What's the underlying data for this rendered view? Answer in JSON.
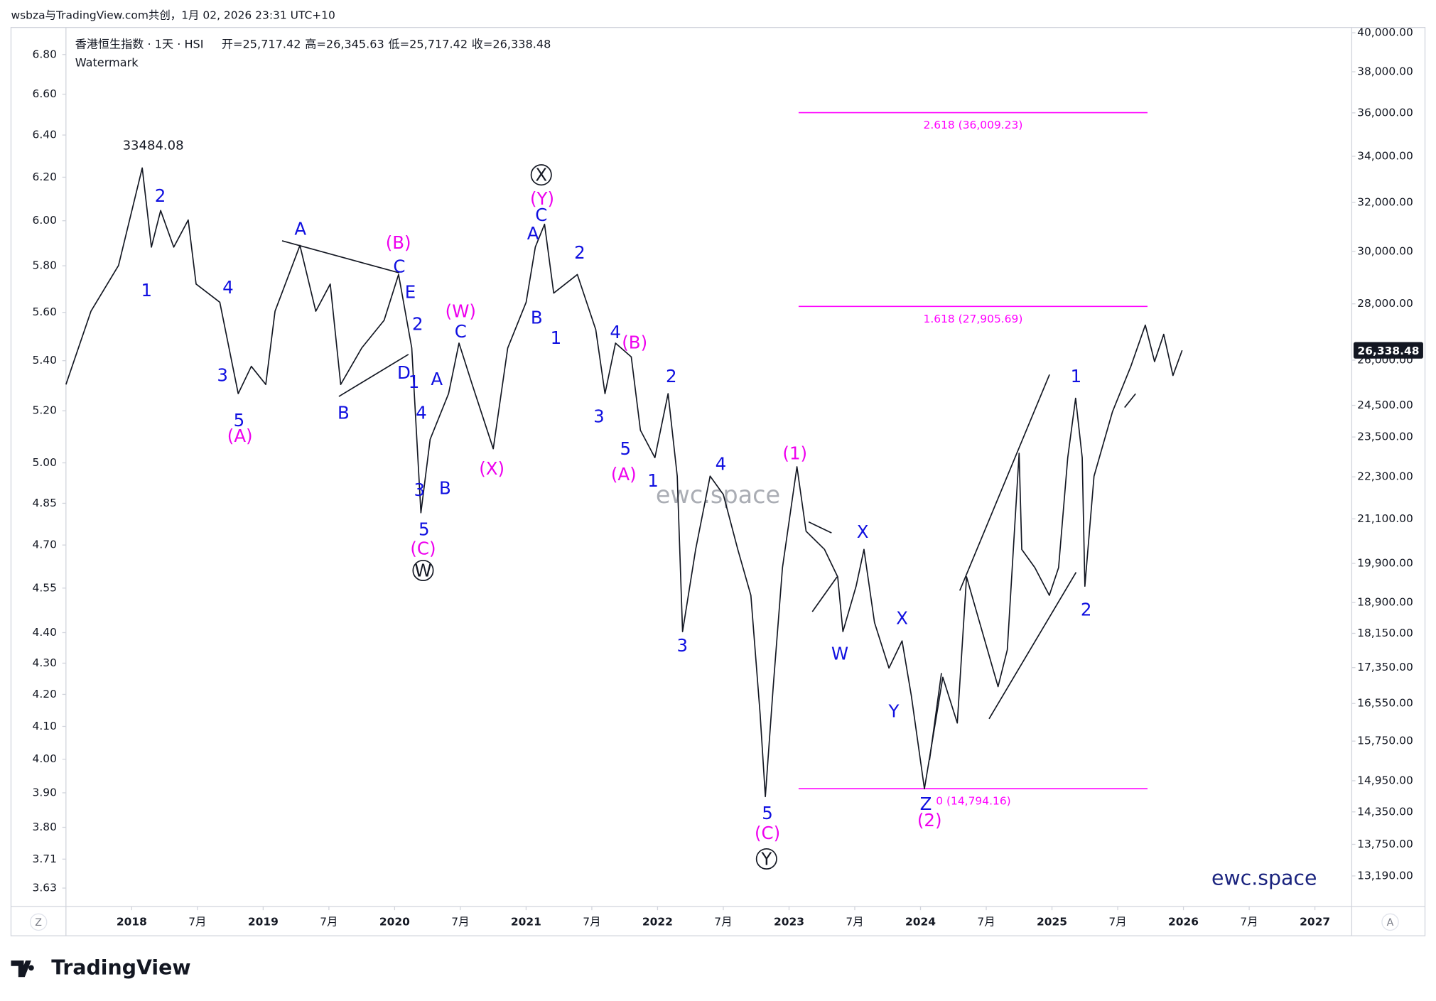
{
  "chart_data": {
    "type": "line",
    "attribution": "wsbza与TradingView.com共创，1月 02, 2026 23:31 UTC+10",
    "symbol": "香港恒生指数 · 1天 · HSI",
    "ohlc": [
      "开=25,717.42",
      "高=26,345.63",
      "低=25,717.42",
      "收=26,338.48"
    ],
    "watermark_label": "Watermark",
    "watermarks": [
      "ewc.space",
      "ewc.space"
    ],
    "brand": "TradingView",
    "buttons": [
      "Z",
      "A"
    ],
    "color": "#131722",
    "log_scale": true,
    "x": [
      2017.5,
      2017.69,
      2017.9,
      2018.08,
      2018.15,
      2018.22,
      2018.32,
      2018.43,
      2018.49,
      2018.67,
      2018.81,
      2018.91,
      2019.02,
      2019.09,
      2019.28,
      2019.4,
      2019.51,
      2019.59,
      2019.75,
      2019.92,
      2020.03,
      2020.13,
      2020.2,
      2020.27,
      2020.41,
      2020.49,
      2020.59,
      2020.75,
      2020.86,
      2021.0,
      2021.07,
      2021.14,
      2021.21,
      2021.39,
      2021.53,
      2021.6,
      2021.68,
      2021.8,
      2021.87,
      2021.98,
      2022.08,
      2022.15,
      2022.19,
      2022.29,
      2022.4,
      2022.5,
      2022.61,
      2022.71,
      2022.78,
      2022.82,
      2022.88,
      2022.95,
      2023.06,
      2023.13,
      2023.27,
      2023.37,
      2023.41,
      2023.51,
      2023.57,
      2023.65,
      2023.76,
      2023.86,
      2023.93,
      2024.03,
      2024.17,
      2024.28,
      2024.35,
      2024.45,
      2024.59,
      2024.66,
      2024.75,
      2024.77,
      2024.87,
      2024.98,
      2025.05,
      2025.12,
      2025.18,
      2025.23,
      2025.25,
      2025.32,
      2025.46,
      2025.6,
      2025.71,
      2025.78,
      2025.85,
      2025.92,
      2025.99
    ],
    "values": [
      25180,
      27730,
      29450,
      33484.08,
      30170,
      31660,
      30170,
      31270,
      28740,
      28060,
      24880,
      25790,
      25180,
      27730,
      30240,
      27730,
      28740,
      25180,
      26420,
      27400,
      29100,
      26420,
      21270,
      23430,
      24880,
      26590,
      25180,
      23140,
      26420,
      28060,
      30170,
      31090,
      28400,
      29100,
      27070,
      24880,
      26590,
      26110,
      23710,
      22870,
      24880,
      22320,
      18190,
      20270,
      22320,
      21790,
      20270,
      19080,
      16320,
      14640,
      16920,
      19790,
      22600,
      20760,
      20270,
      19550,
      18190,
      19310,
      20270,
      18410,
      17340,
      17970,
      16720,
      14794.16,
      17130,
      16130,
      19550,
      18410,
      16920,
      17760,
      23000,
      20270,
      19790,
      19080,
      19790,
      22870,
      24730,
      22870,
      19310,
      22320,
      24290,
      25790,
      27230,
      25950,
      26900,
      25480,
      26338.48
    ],
    "xlim": [
      2017.5,
      2027.28
    ],
    "xticks": [
      2018,
      {
        "value": 2018.5,
        "label": "7月"
      },
      2019,
      {
        "value": 2019.5,
        "label": "7月"
      },
      2020,
      {
        "value": 2020.5,
        "label": "7月"
      },
      2021,
      {
        "value": 2021.5,
        "label": "7月"
      },
      2022,
      {
        "value": 2022.5,
        "label": "7月"
      },
      2023,
      {
        "value": 2023.5,
        "label": "7月"
      },
      2024,
      {
        "value": 2024.5,
        "label": "7月"
      },
      2025,
      {
        "value": 2025.5,
        "label": "7月"
      },
      2026,
      {
        "value": 2026.5,
        "label": "7月"
      },
      2027
    ],
    "ylim": [
      12670,
      40280
    ],
    "yticks": [
      {
        "value": 40000,
        "label": "40,000.00"
      },
      {
        "value": 38000,
        "label": "38,000.00"
      },
      {
        "value": 36000,
        "label": "36,000.00"
      },
      {
        "value": 34000,
        "label": "34,000.00"
      },
      {
        "value": 32000,
        "label": "32,000.00"
      },
      {
        "value": 30000,
        "label": "30,000.00"
      },
      {
        "value": 28000,
        "label": "28,000.00"
      },
      {
        "value": 26000,
        "label": "26,000.00"
      },
      {
        "value": 24500,
        "label": "24,500.00"
      },
      {
        "value": 23500,
        "label": "23,500.00"
      },
      {
        "value": 22300,
        "label": "22,300.00"
      },
      {
        "value": 21100,
        "label": "21,100.00"
      },
      {
        "value": 19900,
        "label": "19,900.00"
      },
      {
        "value": 18900,
        "label": "18,900.00"
      },
      {
        "value": 18150,
        "label": "18,150.00"
      },
      {
        "value": 17350,
        "label": "17,350.00"
      },
      {
        "value": 16550,
        "label": "16,550.00"
      },
      {
        "value": 15750,
        "label": "15,750.00"
      },
      {
        "value": 14950,
        "label": "14,950.00"
      },
      {
        "value": 14350,
        "label": "14,350.00"
      },
      {
        "value": 13750,
        "label": "13,750.00"
      },
      {
        "value": 13190,
        "label": "13,190.00"
      }
    ],
    "y2lim": [
      3.58,
      6.94
    ],
    "y2ticks": [
      {
        "value": 6.8,
        "label": "6.80"
      },
      {
        "value": 6.6,
        "label": "6.60"
      },
      {
        "value": 6.4,
        "label": "6.40"
      },
      {
        "value": 6.2,
        "label": "6.20"
      },
      {
        "value": 6.0,
        "label": "6.00"
      },
      {
        "value": 5.8,
        "label": "5.80"
      },
      {
        "value": 5.6,
        "label": "5.60"
      },
      {
        "value": 5.4,
        "label": "5.40"
      },
      {
        "value": 5.2,
        "label": "5.20"
      },
      {
        "value": 5.0,
        "label": "5.00"
      },
      4.85,
      {
        "value": 4.7,
        "label": "4.70"
      },
      4.55,
      {
        "value": 4.4,
        "label": "4.40"
      },
      {
        "value": 4.3,
        "label": "4.30"
      },
      {
        "value": 4.2,
        "label": "4.20"
      },
      {
        "value": 4.1,
        "label": "4.10"
      },
      {
        "value": 4.0,
        "label": "4.00"
      },
      {
        "value": 3.9,
        "label": "3.90"
      },
      {
        "value": 3.8,
        "label": "3.80"
      },
      3.71,
      3.63
    ],
    "peak_label": 33484.08,
    "last_price": {
      "value": 26338.48,
      "label": "26,338.48"
    },
    "fib_levels": [
      {
        "value": 36009.23,
        "label": "2.618 (36,009.23)"
      },
      {
        "value": 27905.69,
        "label": "1.618 (27,905.69)"
      },
      {
        "value": 14794.16,
        "label": "0 (14,794.16)"
      }
    ],
    "fib_color": "#ff00ff",
    "wave_labels": [
      {
        "text": "2",
        "color": "#1010e0"
      },
      {
        "text": "1",
        "color": "#1010e0"
      },
      {
        "text": "4",
        "color": "#1010e0"
      },
      {
        "text": "3",
        "color": "#1010e0"
      },
      {
        "text": "5",
        "color": "#1010e0"
      },
      {
        "text": "(A)",
        "color": "#ee00ee"
      },
      {
        "text": "A",
        "color": "#1010e0"
      },
      {
        "text": "B",
        "color": "#1010e0"
      },
      {
        "text": "(B)",
        "color": "#ee00ee"
      },
      {
        "text": "C",
        "color": "#1010e0"
      },
      {
        "text": "E",
        "color": "#1010e0"
      },
      {
        "text": "2",
        "color": "#1010e0"
      },
      {
        "text": "D",
        "color": "#1010e0"
      },
      {
        "text": "1",
        "color": "#1010e0"
      },
      {
        "text": "A",
        "color": "#1010e0"
      },
      {
        "text": "4",
        "color": "#1010e0"
      },
      {
        "text": "3",
        "color": "#1010e0"
      },
      {
        "text": "B",
        "color": "#1010e0"
      },
      {
        "text": "5",
        "color": "#1010e0"
      },
      {
        "text": "(C)",
        "color": "#ee00ee"
      },
      {
        "text": "W",
        "color": "#131722",
        "circled": true
      },
      {
        "text": "(W)",
        "color": "#ee00ee"
      },
      {
        "text": "C",
        "color": "#1010e0"
      },
      {
        "text": "(X)",
        "color": "#ee00ee"
      },
      {
        "text": "X",
        "color": "#131722",
        "circled": true
      },
      {
        "text": "(Y)",
        "color": "#ee00ee"
      },
      {
        "text": "C",
        "color": "#1010e0"
      },
      {
        "text": "A",
        "color": "#1010e0"
      },
      {
        "text": "2",
        "color": "#1010e0"
      },
      {
        "text": "B",
        "color": "#1010e0"
      },
      {
        "text": "1",
        "color": "#1010e0"
      },
      {
        "text": "4",
        "color": "#1010e0"
      },
      {
        "text": "(B)",
        "color": "#ee00ee"
      },
      {
        "text": "2",
        "color": "#1010e0"
      },
      {
        "text": "3",
        "color": "#1010e0"
      },
      {
        "text": "5",
        "color": "#1010e0"
      },
      {
        "text": "(A)",
        "color": "#ee00ee"
      },
      {
        "text": "1",
        "color": "#1010e0"
      },
      {
        "text": "4",
        "color": "#1010e0"
      },
      {
        "text": "3",
        "color": "#1010e0"
      },
      {
        "text": "(1)",
        "color": "#ee00ee"
      },
      {
        "text": "X",
        "color": "#1010e0"
      },
      {
        "text": "W",
        "color": "#1010e0"
      },
      {
        "text": "X",
        "color": "#1010e0"
      },
      {
        "text": "Y",
        "color": "#1010e0"
      },
      {
        "text": "Z",
        "color": "#1010e0"
      },
      {
        "text": "(2)",
        "color": "#ee00ee"
      },
      {
        "text": "5",
        "color": "#1010e0"
      },
      {
        "text": "(C)",
        "color": "#ee00ee"
      },
      {
        "text": "Y",
        "color": "#131722",
        "circled": true
      },
      {
        "text": "1",
        "color": "#1010e0"
      },
      {
        "text": "2",
        "color": "#1010e0"
      }
    ]
  }
}
